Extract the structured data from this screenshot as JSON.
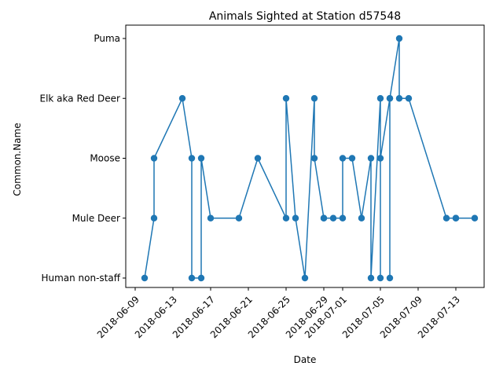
{
  "chart_data": {
    "type": "line",
    "title": "Animals Sighted at Station d57548",
    "xlabel": "Date",
    "ylabel": "Common.Name",
    "categories_y": [
      "Human non-staff",
      "Mule Deer",
      "Moose",
      "Elk aka Red Deer",
      "Puma"
    ],
    "x_ticks": [
      "2018-06-09",
      "2018-06-13",
      "2018-06-17",
      "2018-06-21",
      "2018-06-25",
      "2018-06-29",
      "2018-07-01",
      "2018-07-05",
      "2018-07-09",
      "2018-07-13"
    ],
    "xlim": [
      "2018-06-08",
      "2018-07-16"
    ],
    "grid": false,
    "marker": "circle",
    "color": "#1f77b4",
    "series": [
      {
        "points": [
          {
            "x": "2018-06-10",
            "y": "Human non-staff"
          },
          {
            "x": "2018-06-11",
            "y": "Mule Deer"
          },
          {
            "x": "2018-06-11",
            "y": "Moose"
          },
          {
            "x": "2018-06-14",
            "y": "Elk aka Red Deer"
          },
          {
            "x": "2018-06-15",
            "y": "Moose"
          },
          {
            "x": "2018-06-15",
            "y": "Human non-staff"
          },
          {
            "x": "2018-06-16",
            "y": "Human non-staff"
          },
          {
            "x": "2018-06-16",
            "y": "Moose"
          },
          {
            "x": "2018-06-17",
            "y": "Mule Deer"
          },
          {
            "x": "2018-06-20",
            "y": "Mule Deer"
          },
          {
            "x": "2018-06-22",
            "y": "Moose"
          },
          {
            "x": "2018-06-25",
            "y": "Mule Deer"
          },
          {
            "x": "2018-06-25",
            "y": "Elk aka Red Deer"
          },
          {
            "x": "2018-06-26",
            "y": "Mule Deer"
          },
          {
            "x": "2018-06-27",
            "y": "Human non-staff"
          },
          {
            "x": "2018-06-28",
            "y": "Elk aka Red Deer"
          },
          {
            "x": "2018-06-28",
            "y": "Moose"
          },
          {
            "x": "2018-06-29",
            "y": "Mule Deer"
          },
          {
            "x": "2018-06-29",
            "y": "Mule Deer"
          },
          {
            "x": "2018-06-30",
            "y": "Mule Deer"
          },
          {
            "x": "2018-07-01",
            "y": "Mule Deer"
          },
          {
            "x": "2018-07-01",
            "y": "Moose"
          },
          {
            "x": "2018-07-02",
            "y": "Moose"
          },
          {
            "x": "2018-07-03",
            "y": "Mule Deer"
          },
          {
            "x": "2018-07-04",
            "y": "Moose"
          },
          {
            "x": "2018-07-04",
            "y": "Human non-staff"
          },
          {
            "x": "2018-07-05",
            "y": "Elk aka Red Deer"
          },
          {
            "x": "2018-07-05",
            "y": "Human non-staff"
          },
          {
            "x": "2018-07-05",
            "y": "Moose"
          },
          {
            "x": "2018-07-06",
            "y": "Elk aka Red Deer"
          },
          {
            "x": "2018-07-06",
            "y": "Human non-staff"
          },
          {
            "x": "2018-07-06",
            "y": "Elk aka Red Deer"
          },
          {
            "x": "2018-07-07",
            "y": "Puma"
          },
          {
            "x": "2018-07-07",
            "y": "Elk aka Red Deer"
          },
          {
            "x": "2018-07-08",
            "y": "Elk aka Red Deer"
          },
          {
            "x": "2018-07-12",
            "y": "Mule Deer"
          },
          {
            "x": "2018-07-13",
            "y": "Mule Deer"
          },
          {
            "x": "2018-07-13",
            "y": "Mule Deer"
          },
          {
            "x": "2018-07-15",
            "y": "Mule Deer"
          }
        ]
      }
    ]
  }
}
